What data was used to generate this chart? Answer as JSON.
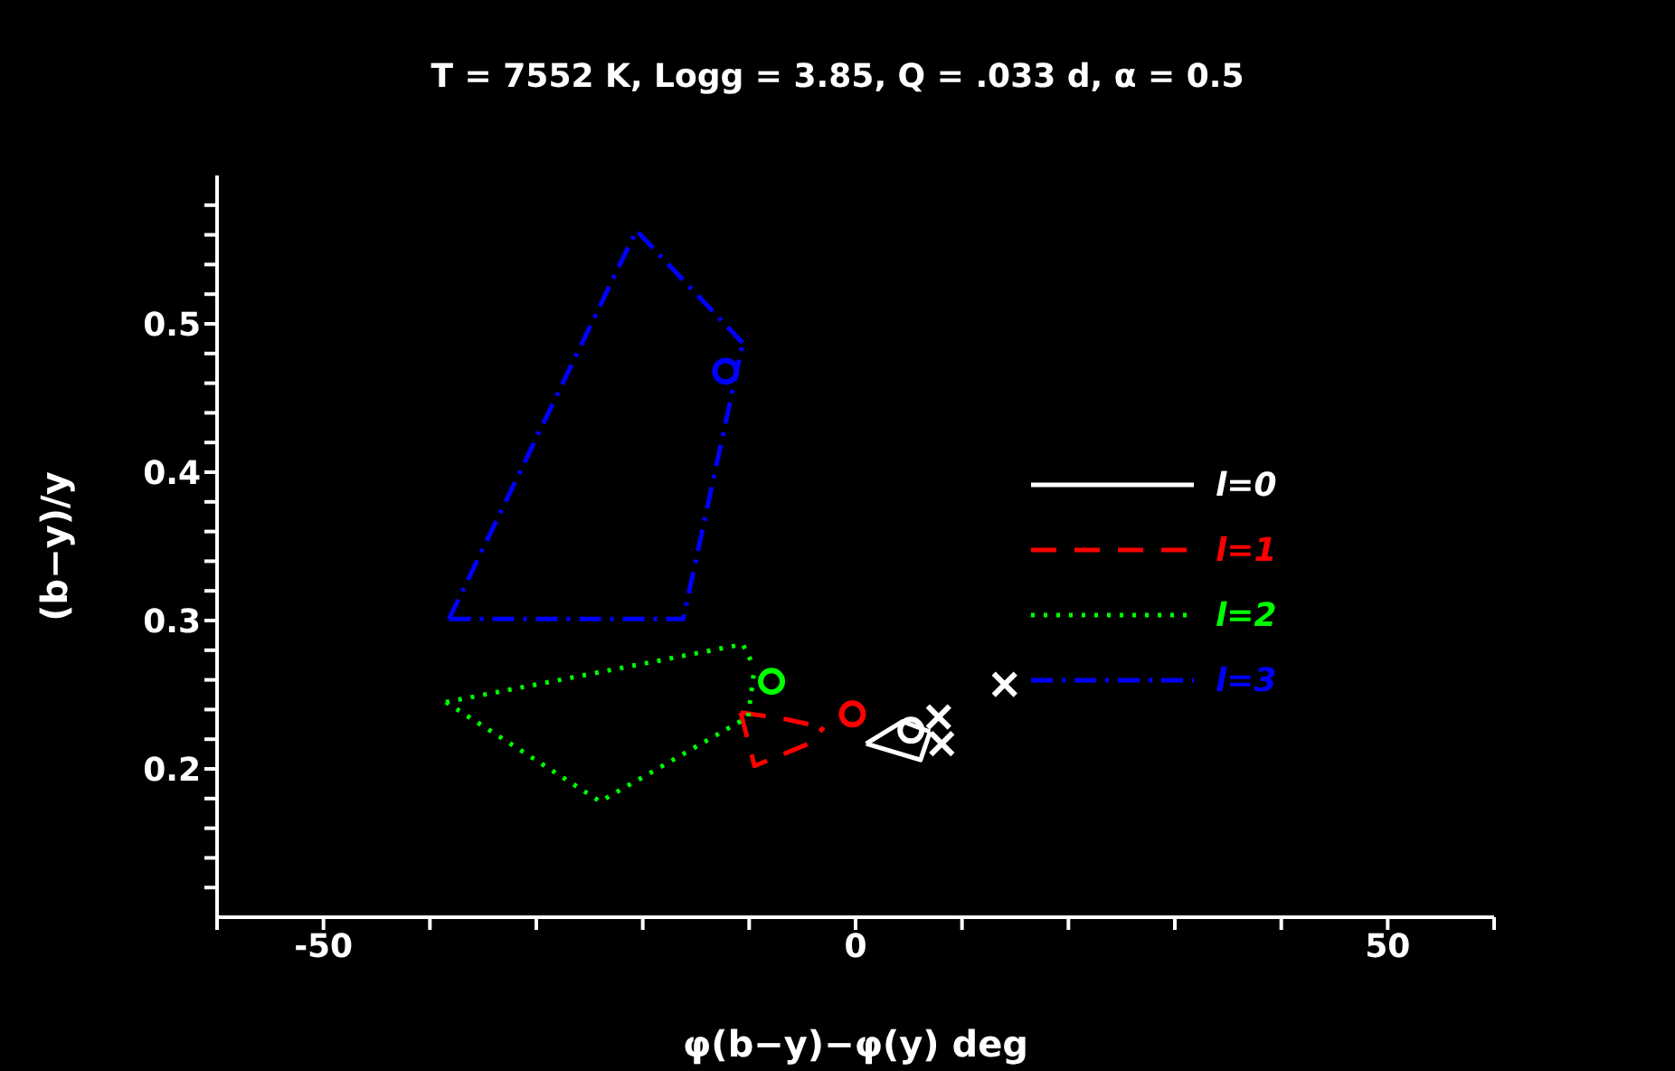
{
  "chart_data": {
    "type": "line",
    "title": "T = 7552 K, Logg = 3.85, Q = .033 d, α = 0.5",
    "xlabel": "φ(b−y)−φ(y) deg",
    "ylabel": "(b−y)/y",
    "xlim": [
      -60,
      60
    ],
    "ylim": [
      0.1,
      0.6
    ],
    "xticks": [
      {
        "value": -60,
        "label": null
      },
      -50,
      {
        "value": -40,
        "label": null
      },
      {
        "value": -30,
        "label": null
      },
      {
        "value": -20,
        "label": null
      },
      {
        "value": -10,
        "label": null
      },
      0,
      {
        "value": 10,
        "label": null
      },
      {
        "value": 20,
        "label": null
      },
      {
        "value": 30,
        "label": null
      },
      {
        "value": 40,
        "label": null
      },
      50,
      {
        "value": 60,
        "label": null
      }
    ],
    "yticks": [
      {
        "value": 0.12,
        "label": null
      },
      {
        "value": 0.14,
        "label": null
      },
      {
        "value": 0.16,
        "label": null
      },
      {
        "value": 0.18,
        "label": null
      },
      0.2,
      {
        "value": 0.22,
        "label": null
      },
      {
        "value": 0.24,
        "label": null
      },
      {
        "value": 0.26,
        "label": null
      },
      {
        "value": 0.28,
        "label": null
      },
      0.3,
      {
        "value": 0.32,
        "label": null
      },
      {
        "value": 0.34,
        "label": null
      },
      {
        "value": 0.36,
        "label": null
      },
      {
        "value": 0.38,
        "label": null
      },
      0.4,
      {
        "value": 0.42,
        "label": null
      },
      {
        "value": 0.44,
        "label": null
      },
      {
        "value": 0.46,
        "label": null
      },
      {
        "value": 0.48,
        "label": null
      },
      0.5,
      {
        "value": 0.52,
        "label": null
      },
      {
        "value": 0.54,
        "label": null
      },
      {
        "value": 0.56,
        "label": null
      },
      {
        "value": 0.58,
        "label": null
      }
    ],
    "legend": "right",
    "series": [
      {
        "name": "l=0",
        "color": "#ffffff",
        "line_style": "solid",
        "x": [
          1.0,
          4.4,
          7.0
        ],
        "values": [
          0.217,
          0.232,
          0.225
        ]
      },
      {
        "color": "#ffffff",
        "line_style": "solid",
        "x": [
          1.0,
          6.1,
          7.0
        ],
        "values": [
          0.217,
          0.206,
          0.225
        ]
      },
      {
        "name": "l=1",
        "color": "#ff0000",
        "line_style": "dashed",
        "x": [
          -10.8,
          -6.9,
          -3.0
        ],
        "values": [
          0.238,
          0.234,
          0.228
        ]
      },
      {
        "color": "#ff0000",
        "line_style": "dashed",
        "x": [
          -10.8,
          -9.5,
          -4.4,
          -3.0
        ],
        "values": [
          0.238,
          0.202,
          0.217,
          0.228
        ]
      },
      {
        "name": "l=2",
        "color": "#00ff00",
        "line_style": "dotted",
        "x": [
          -38.5,
          -10.6,
          -9.5
        ],
        "values": [
          0.245,
          0.284,
          0.268
        ]
      },
      {
        "color": "#00ff00",
        "line_style": "dotted",
        "x": [
          -38.5,
          -24.0,
          -10.1,
          -9.5
        ],
        "values": [
          0.245,
          0.178,
          0.235,
          0.268
        ]
      },
      {
        "name": "l=3",
        "color": "#0000ff",
        "line_style": "dashdot",
        "x": [
          -38.2,
          -20.6,
          -10.6
        ],
        "values": [
          0.301,
          0.563,
          0.487
        ]
      },
      {
        "color": "#0000ff",
        "line_style": "dashdot",
        "x": [
          -38.2,
          -16.2,
          -10.6
        ],
        "values": [
          0.301,
          0.301,
          0.487
        ]
      },
      {
        "type": "scatter",
        "marker": "circle",
        "x": [
          5.2,
          -0.3,
          -7.9,
          -12.2
        ],
        "values": [
          0.226,
          0.237,
          0.259,
          0.468
        ],
        "colors": [
          "#ffffff",
          "#ff0000",
          "#00ff00",
          "#0000ff"
        ]
      },
      {
        "type": "scatter",
        "marker": "cross",
        "color": "#ffffff",
        "x": [
          7.8,
          8.1,
          14.0
        ],
        "values": [
          0.235,
          0.217,
          0.257
        ]
      }
    ]
  }
}
